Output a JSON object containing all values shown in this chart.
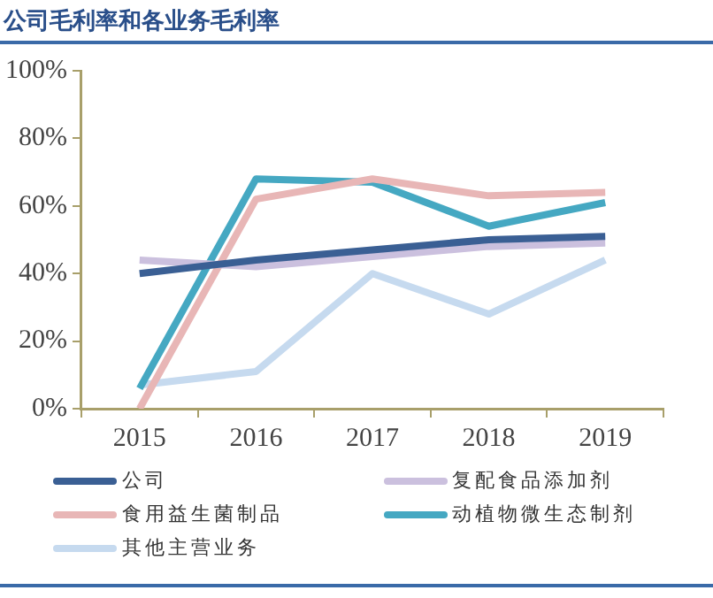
{
  "chart_data": {
    "type": "line",
    "title": "公司毛利率和各业务毛利率",
    "categories": [
      "2015",
      "2016",
      "2017",
      "2018",
      "2019"
    ],
    "series": [
      {
        "name": "公司",
        "color": "#3a5f94",
        "values": [
          40,
          44,
          47,
          50,
          51
        ]
      },
      {
        "name": "复配食品添加剂",
        "color": "#cbc0de",
        "values": [
          44,
          42,
          45,
          48,
          49
        ]
      },
      {
        "name": "食用益生菌制品",
        "color": "#e8b6b6",
        "values": [
          0,
          62,
          68,
          63,
          64
        ]
      },
      {
        "name": "动植物微生态制剂",
        "color": "#45a8c2",
        "values": [
          6,
          68,
          67,
          54,
          61
        ]
      },
      {
        "name": "其他主营业务",
        "color": "#c6daef",
        "values": [
          7,
          11,
          40,
          28,
          44
        ]
      }
    ],
    "ylim": [
      0,
      100
    ],
    "yticks": [
      {
        "value": 0,
        "label": "0%"
      },
      {
        "value": 20,
        "label": "20%"
      },
      {
        "value": 40,
        "label": "40%"
      },
      {
        "value": 60,
        "label": "60%"
      },
      {
        "value": 80,
        "label": "80%"
      },
      {
        "value": 100,
        "label": "100%"
      }
    ],
    "grid": false,
    "legend": "bottom",
    "marker": "none",
    "line_style": "solid"
  }
}
